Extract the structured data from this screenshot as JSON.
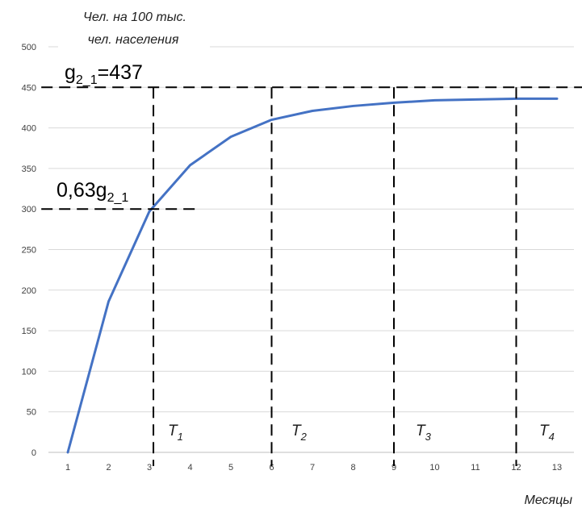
{
  "chart_data": {
    "type": "line",
    "ylabel": "Чел. на 100 тыс. чел. населения",
    "ylabel_lines": [
      "Чел. на 100 тыс.",
      "чел. населения"
    ],
    "xlabel": "Месяцы",
    "x": [
      1,
      2,
      3,
      4,
      5,
      6,
      7,
      8,
      9,
      10,
      11,
      12,
      13
    ],
    "xticks": [
      "1",
      "2",
      "3",
      "4",
      "5",
      "6",
      "7",
      "8",
      "9",
      "10",
      "11",
      "12",
      "13"
    ],
    "ylim": [
      0,
      500
    ],
    "yticks": [
      "0",
      "50",
      "100",
      "150",
      "200",
      "250",
      "300",
      "350",
      "400",
      "450",
      "500"
    ],
    "grid": true,
    "series": [
      {
        "color": "#4472C4",
        "values": [
          0,
          186,
          297,
          354,
          389,
          410,
          421,
          427,
          431,
          434,
          435,
          436,
          436
        ]
      }
    ],
    "reference_lines": {
      "horizontal": [
        {
          "y": 450,
          "x_from": 0.35,
          "x_to": 13.75
        },
        {
          "y": 300,
          "x_from": 0.35,
          "x_to": 4.2
        }
      ],
      "vertical": [
        3.1,
        6,
        9,
        12
      ]
    },
    "annotations": {
      "g_label": {
        "base": "g",
        "sub": "2_1",
        "rest": "=437"
      },
      "g063_label": {
        "base": "0,63g",
        "sub": "2_1"
      },
      "periods": [
        {
          "base": "T",
          "sub": "1"
        },
        {
          "base": "T",
          "sub": "2"
        },
        {
          "base": "T",
          "sub": "3"
        },
        {
          "base": "T",
          "sub": "4"
        }
      ]
    },
    "colors": {
      "line": "#4472C4",
      "grid": "#d9d9d9",
      "dash": "#000000"
    }
  }
}
